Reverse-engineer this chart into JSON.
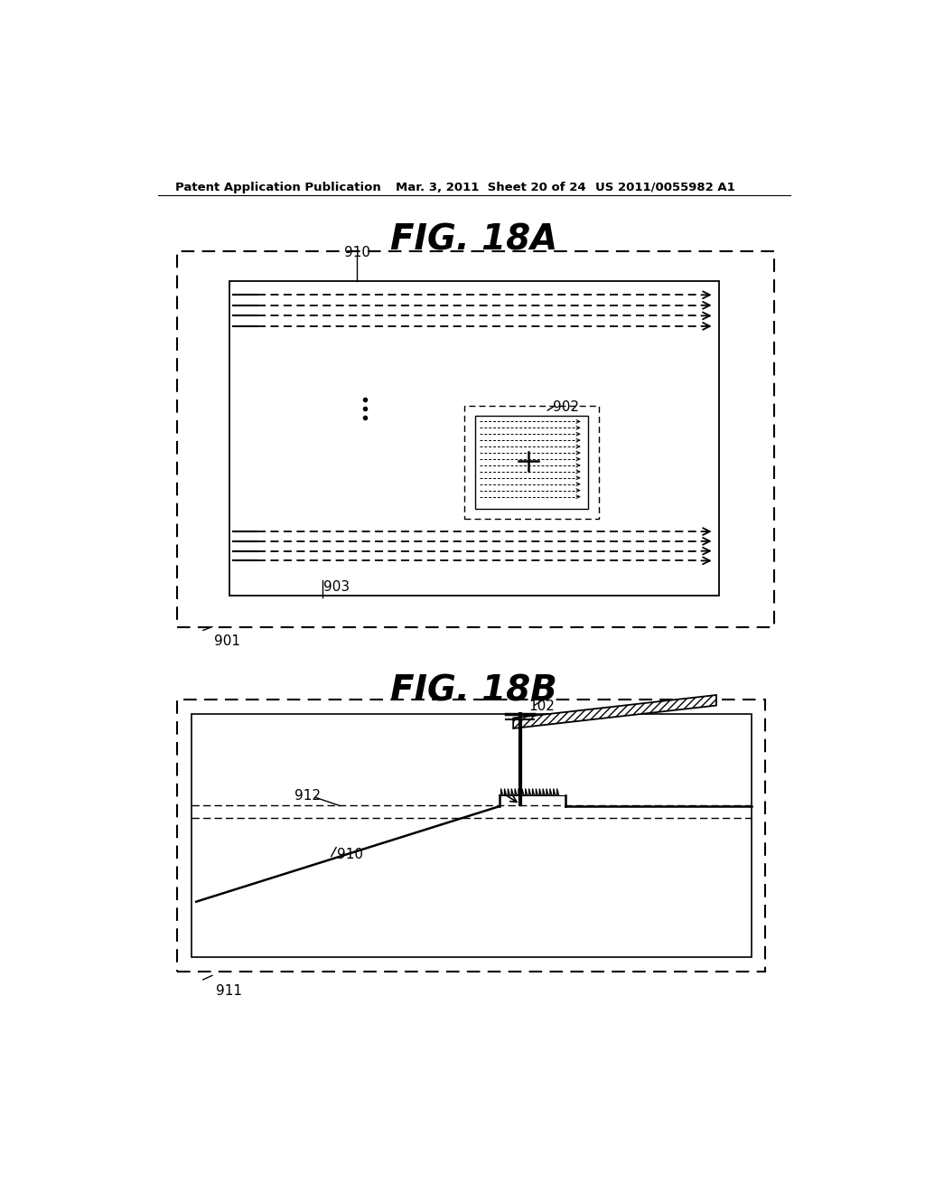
{
  "bg_color": "#ffffff",
  "header_left": "Patent Application Publication",
  "header_mid": "Mar. 3, 2011  Sheet 20 of 24",
  "header_right": "US 2011/0055982 A1",
  "fig18a_title": "FIG. 18A",
  "fig18b_title": "FIG. 18B",
  "label_910a": "910",
  "label_902": "902",
  "label_903": "903",
  "label_901": "901",
  "label_910b": "910",
  "label_912": "912",
  "label_102": "102",
  "label_911": "911"
}
